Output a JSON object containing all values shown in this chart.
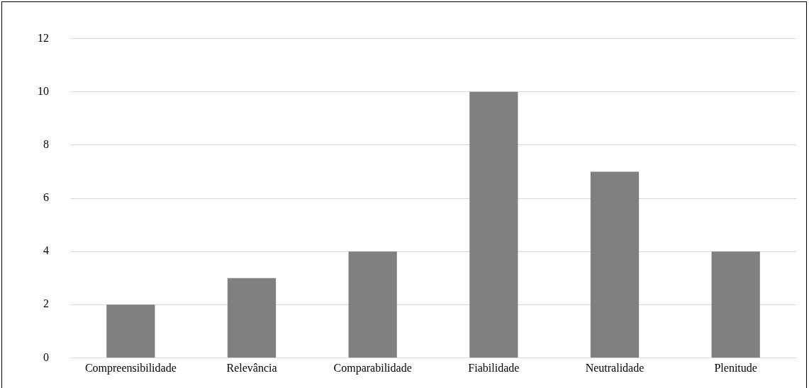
{
  "chart_data": {
    "type": "bar",
    "categories": [
      "Compreensibilidade",
      "Relevância",
      "Comparabilidade",
      "Fiabilidade",
      "Neutralidade",
      "Plenitude"
    ],
    "values": [
      2,
      3,
      4,
      10,
      7,
      4
    ],
    "color": "#808080",
    "ylim": [
      0,
      12
    ],
    "yticks": [
      0,
      2,
      4,
      6,
      8,
      10,
      12
    ],
    "grid": "y",
    "legend": false
  }
}
